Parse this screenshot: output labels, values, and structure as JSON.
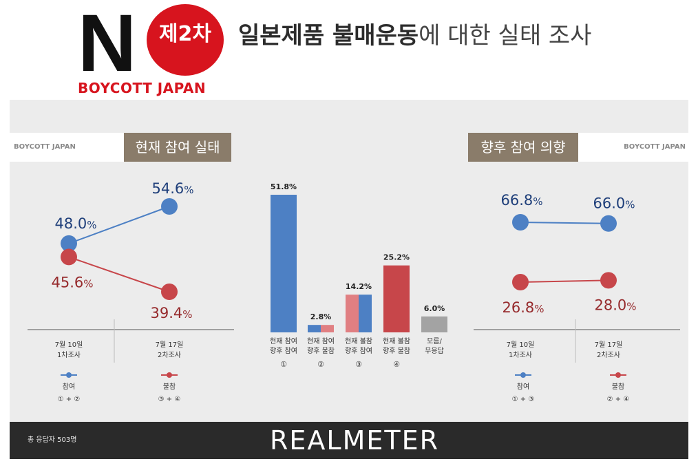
{
  "header": {
    "logo_letter": "N",
    "badge": "제2차",
    "logo_caption": "BOYCOTT JAPAN",
    "title_bold": "일본제품 불매운동",
    "title_rest": "에 대한 실태 조사"
  },
  "left_panel": {
    "band_label": "BOYCOTT JAPAN",
    "tab_title": "현재 참여 실태"
  },
  "right_panel": {
    "band_label": "BOYCOTT JAPAN",
    "tab_title": "향후 참여 의향"
  },
  "footer": {
    "respondents": "총 응답자 503명",
    "brand": "REALMETER"
  },
  "colors": {
    "blue": "#4d80c4",
    "red": "#c7464a",
    "light_red": "#e07f82",
    "gray": "#a3a3a3",
    "tab_brown": "#8a7c6a",
    "label_blue": "#1f3f7a",
    "label_red": "#962a2c"
  },
  "chart_data": [
    {
      "type": "line",
      "categories": [
        [
          "7월 10일",
          "1차조사"
        ],
        [
          "7월 17일",
          "2차조사"
        ]
      ],
      "series": [
        {
          "name": "참여",
          "formula": "① + ②",
          "color": "#4d80c4",
          "values": [
            48.0,
            54.6
          ],
          "labels": [
            "48.0",
            "54.6"
          ]
        },
        {
          "name": "불참",
          "formula": "③ + ④",
          "color": "#c7464a",
          "values": [
            45.6,
            39.4
          ],
          "labels": [
            "45.6",
            "39.4"
          ]
        }
      ],
      "unit": "%"
    },
    {
      "type": "bar",
      "bars": [
        {
          "label": [
            "현재 참여",
            "향후 참여"
          ],
          "num": "①",
          "value": 51.8,
          "text": "51.8%",
          "colors": [
            "#4d80c4"
          ]
        },
        {
          "label": [
            "현재 참여",
            "향후 불참"
          ],
          "num": "②",
          "value": 2.8,
          "text": "2.8%",
          "colors": [
            "#4d80c4",
            "#e07f82"
          ]
        },
        {
          "label": [
            "현재 불참",
            "향후 참여"
          ],
          "num": "③",
          "value": 14.2,
          "text": "14.2%",
          "colors": [
            "#e07f82",
            "#4d80c4"
          ]
        },
        {
          "label": [
            "현재 불참",
            "향후 불참"
          ],
          "num": "④",
          "value": 25.2,
          "text": "25.2%",
          "colors": [
            "#c7464a"
          ]
        },
        {
          "label": [
            "모름/",
            "무응답"
          ],
          "num": "",
          "value": 6.0,
          "text": "6.0%",
          "colors": [
            "#a3a3a3"
          ]
        }
      ]
    },
    {
      "type": "line",
      "categories": [
        [
          "7월 10일",
          "1차조사"
        ],
        [
          "7월 17일",
          "2차조사"
        ]
      ],
      "series": [
        {
          "name": "참여",
          "formula": "① + ③",
          "color": "#4d80c4",
          "values": [
            66.8,
            66.0
          ],
          "labels": [
            "66.8",
            "66.0"
          ]
        },
        {
          "name": "불참",
          "formula": "② + ④",
          "color": "#c7464a",
          "values": [
            26.8,
            28.0
          ],
          "labels": [
            "26.8",
            "28.0"
          ]
        }
      ],
      "unit": "%"
    }
  ]
}
